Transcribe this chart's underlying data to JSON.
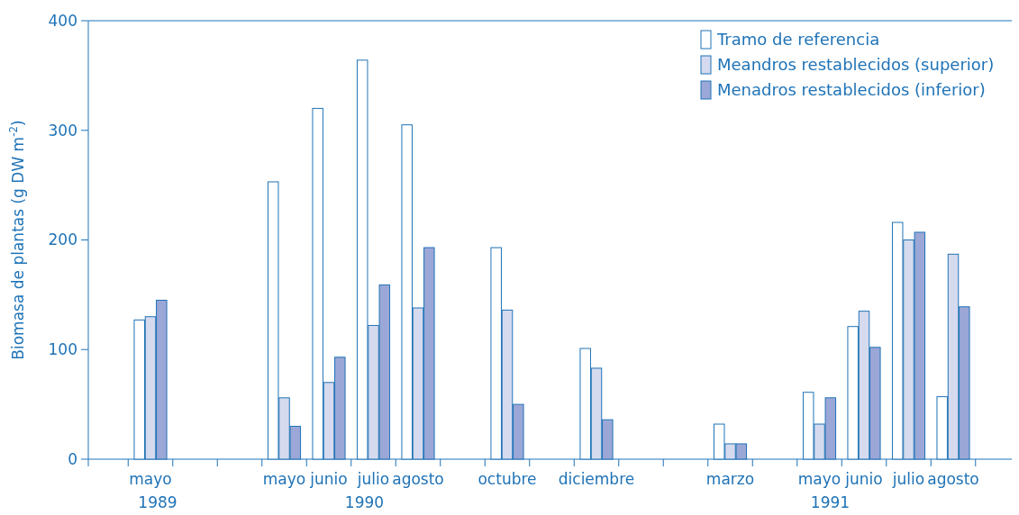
{
  "chart_data": {
    "type": "bar",
    "ylabel": "Biomasa de plantas (g DW m$^{-2}$)",
    "categories": [
      "mayo",
      null,
      null,
      "mayo",
      "junio",
      "julio",
      "agosto",
      null,
      "octubre",
      null,
      "diciembre",
      null,
      null,
      "marzo",
      null,
      "mayo",
      "junio",
      "julio",
      "agosto"
    ],
    "series": [
      {
        "name": "Tramo de referencia",
        "color": "#ffffff",
        "values": [
          127,
          null,
          null,
          253,
          320,
          364,
          305,
          null,
          193,
          null,
          101,
          null,
          null,
          32,
          null,
          61,
          121,
          216,
          57
        ]
      },
      {
        "name": "Meandros restablecidos (superior)",
        "color": "#d5daee",
        "values": [
          130,
          null,
          null,
          56,
          70,
          122,
          138,
          null,
          136,
          null,
          83,
          null,
          null,
          14,
          null,
          32,
          135,
          200,
          187
        ]
      },
      {
        "name": "Menadros restablecidos (inferior)",
        "color": "#9ba7d6",
        "values": [
          145,
          null,
          null,
          30,
          93,
          159,
          193,
          null,
          50,
          null,
          36,
          null,
          null,
          14,
          null,
          56,
          102,
          207,
          139
        ]
      }
    ],
    "ylim": [
      0,
      400
    ],
    "yticks": [
      0,
      100,
      200,
      300,
      400
    ],
    "legend": "top right",
    "grid": false,
    "annotations": [
      "1989",
      "1990",
      "1991"
    ]
  }
}
